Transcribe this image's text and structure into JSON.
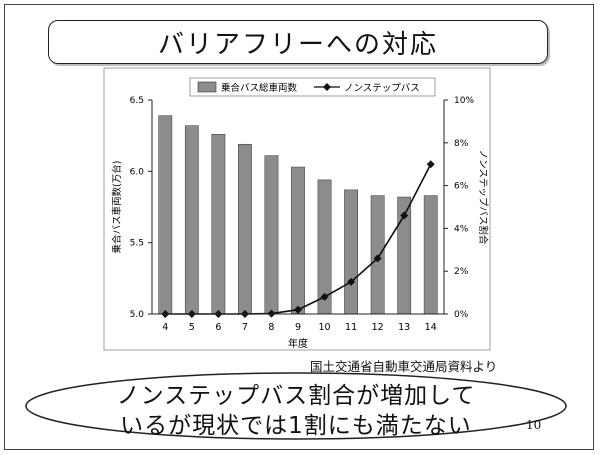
{
  "slide": {
    "title": "バリアフリーへの対応",
    "source": "国土交通省自動車交通局資料より",
    "callout_line1": "ノンステップバス割合が増加して",
    "callout_line2": "いるが現状では1割にも満たない",
    "page_number": "10"
  },
  "chart_data": {
    "type": "bar+line",
    "categories": [
      "4",
      "5",
      "6",
      "7",
      "8",
      "9",
      "10",
      "11",
      "12",
      "13",
      "14"
    ],
    "xlabel": "年度",
    "ylabel_left": "乗合バス車両数(万台)",
    "ylabel_right": "ノンステップバス割合",
    "ylim_left": [
      5.0,
      6.5
    ],
    "yticks_left": [
      "5.0",
      "5.5",
      "6.0",
      "6.5"
    ],
    "ylim_right": [
      0,
      10
    ],
    "yticks_right": [
      "0%",
      "2%",
      "4%",
      "6%",
      "8%",
      "10%"
    ],
    "legend_position": "top",
    "series": [
      {
        "name": "乗合バス総車両数",
        "type": "bar",
        "axis": "left",
        "color": "#8c8c8c",
        "values": [
          6.39,
          6.32,
          6.26,
          6.19,
          6.11,
          6.03,
          5.94,
          5.87,
          5.83,
          5.82,
          5.83
        ]
      },
      {
        "name": "ノンステップバス",
        "type": "line",
        "axis": "right",
        "color": "#111111",
        "values": [
          0.0,
          0.0,
          0.0,
          0.0,
          0.02,
          0.2,
          0.8,
          1.5,
          2.6,
          4.6,
          7.0
        ]
      }
    ]
  }
}
